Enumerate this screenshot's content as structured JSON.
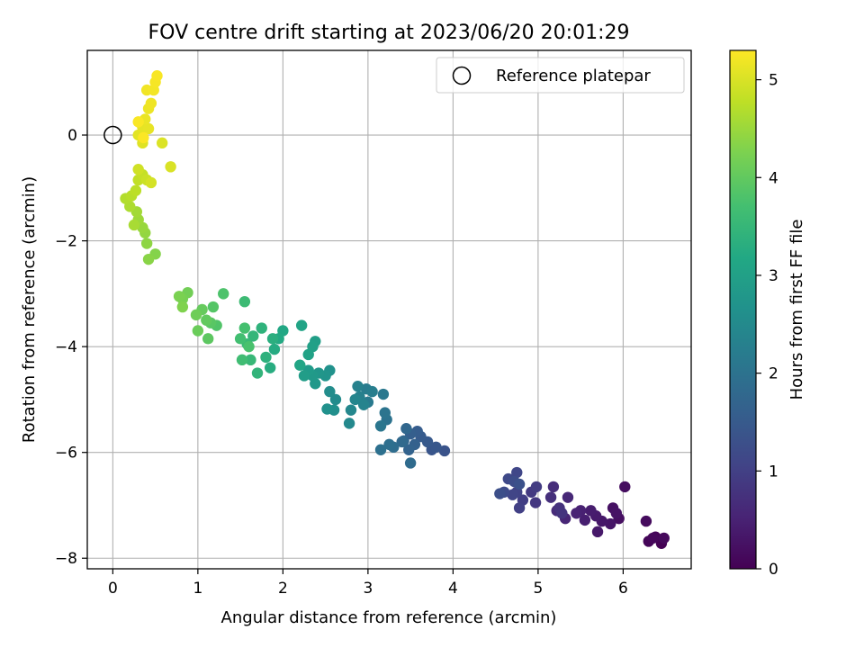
{
  "chart_data": {
    "type": "scatter",
    "title": "FOV centre drift starting at 2023/06/20 20:01:29",
    "xlabel": "Angular distance from reference (arcmin)",
    "ylabel": "Rotation from reference (arcmin)",
    "xlim": [
      -0.3,
      6.8
    ],
    "ylim": [
      -8.2,
      1.6
    ],
    "xticks": [
      0,
      1,
      2,
      3,
      4,
      5,
      6
    ],
    "yticks": [
      -8,
      -6,
      -4,
      -2,
      0
    ],
    "xtick_labels": [
      "0",
      "1",
      "2",
      "3",
      "4",
      "5",
      "6"
    ],
    "ytick_labels": [
      "−8",
      "−6",
      "−4",
      "−2",
      "0"
    ],
    "grid": true,
    "legend": {
      "placement": "top-right",
      "entries": [
        "Reference platepar"
      ]
    },
    "reference_point": {
      "x": 0,
      "y": 0
    },
    "colorbar": {
      "label": "Hours from first FF file",
      "range": [
        0,
        5.3
      ],
      "ticks": [
        0,
        1,
        2,
        3,
        4,
        5
      ],
      "tick_labels": [
        "0",
        "1",
        "2",
        "3",
        "4",
        "5"
      ],
      "colormap": "viridis"
    },
    "points": [
      [
        6.45,
        -7.72,
        0.0
      ],
      [
        6.38,
        -7.6,
        0.03
      ],
      [
        6.3,
        -7.68,
        0.06
      ],
      [
        6.35,
        -7.62,
        0.09
      ],
      [
        6.48,
        -7.62,
        0.12
      ],
      [
        6.27,
        -7.3,
        0.15
      ],
      [
        6.02,
        -6.65,
        0.18
      ],
      [
        5.95,
        -7.25,
        0.21
      ],
      [
        5.88,
        -7.05,
        0.24
      ],
      [
        5.92,
        -7.15,
        0.27
      ],
      [
        5.85,
        -7.35,
        0.3
      ],
      [
        5.75,
        -7.3,
        0.33
      ],
      [
        5.7,
        -7.5,
        0.36
      ],
      [
        5.68,
        -7.2,
        0.39
      ],
      [
        5.62,
        -7.1,
        0.42
      ],
      [
        5.55,
        -7.28,
        0.45
      ],
      [
        5.5,
        -7.1,
        0.48
      ],
      [
        5.45,
        -7.15,
        0.52
      ],
      [
        5.32,
        -7.25,
        0.56
      ],
      [
        5.35,
        -6.85,
        0.6
      ],
      [
        5.22,
        -7.1,
        0.64
      ],
      [
        5.18,
        -6.65,
        0.68
      ],
      [
        5.15,
        -6.85,
        0.72
      ],
      [
        5.25,
        -7.05,
        0.76
      ],
      [
        5.28,
        -7.15,
        0.8
      ],
      [
        4.97,
        -6.95,
        0.84
      ],
      [
        4.92,
        -6.75,
        0.88
      ],
      [
        4.98,
        -6.65,
        0.92
      ],
      [
        4.82,
        -6.9,
        0.96
      ],
      [
        4.78,
        -7.05,
        1.0
      ],
      [
        4.75,
        -6.75,
        1.04
      ],
      [
        4.7,
        -6.8,
        1.08
      ],
      [
        4.75,
        -6.38,
        1.12
      ],
      [
        4.65,
        -6.5,
        1.16
      ],
      [
        4.6,
        -6.75,
        1.2
      ],
      [
        4.72,
        -6.55,
        1.24
      ],
      [
        4.55,
        -6.78,
        1.28
      ],
      [
        4.78,
        -6.6,
        1.32
      ],
      [
        3.9,
        -5.97,
        1.36
      ],
      [
        3.75,
        -5.95,
        1.4
      ],
      [
        3.8,
        -5.9,
        1.44
      ],
      [
        3.7,
        -5.8,
        1.48
      ],
      [
        3.62,
        -5.7,
        1.52
      ],
      [
        3.58,
        -5.6,
        1.56
      ],
      [
        3.5,
        -5.65,
        1.6
      ],
      [
        3.55,
        -5.85,
        1.64
      ],
      [
        3.48,
        -5.95,
        1.68
      ],
      [
        3.42,
        -5.78,
        1.72
      ],
      [
        3.45,
        -5.55,
        1.76
      ],
      [
        3.4,
        -5.8,
        1.8
      ],
      [
        3.5,
        -6.2,
        1.84
      ],
      [
        3.3,
        -5.9,
        1.88
      ],
      [
        3.25,
        -5.85,
        1.92
      ],
      [
        3.15,
        -5.95,
        1.96
      ],
      [
        3.22,
        -5.38,
        2.0
      ],
      [
        3.2,
        -5.25,
        2.04
      ],
      [
        3.15,
        -5.5,
        2.08
      ],
      [
        3.18,
        -4.9,
        2.12
      ],
      [
        3.0,
        -5.05,
        2.16
      ],
      [
        2.98,
        -4.8,
        2.2
      ],
      [
        3.05,
        -4.85,
        2.24
      ],
      [
        2.9,
        -4.95,
        2.28
      ],
      [
        2.88,
        -4.75,
        2.32
      ],
      [
        2.95,
        -5.1,
        2.36
      ],
      [
        2.85,
        -5.0,
        2.4
      ],
      [
        2.8,
        -5.2,
        2.44
      ],
      [
        2.78,
        -5.45,
        2.48
      ],
      [
        2.62,
        -5.0,
        2.52
      ],
      [
        2.55,
        -4.85,
        2.56
      ],
      [
        2.6,
        -5.2,
        2.6
      ],
      [
        2.52,
        -5.18,
        2.64
      ],
      [
        2.55,
        -4.45,
        2.68
      ],
      [
        2.5,
        -4.55,
        2.72
      ],
      [
        2.42,
        -4.5,
        2.76
      ],
      [
        2.38,
        -4.7,
        2.8
      ],
      [
        2.35,
        -4.55,
        2.84
      ],
      [
        2.3,
        -4.45,
        2.88
      ],
      [
        2.25,
        -4.55,
        2.92
      ],
      [
        2.38,
        -3.9,
        2.96
      ],
      [
        2.35,
        -4.0,
        3.0
      ],
      [
        2.3,
        -4.15,
        3.04
      ],
      [
        2.22,
        -3.6,
        3.08
      ],
      [
        2.2,
        -4.35,
        3.12
      ],
      [
        2.0,
        -3.7,
        3.16
      ],
      [
        1.95,
        -3.85,
        3.2
      ],
      [
        1.9,
        -4.05,
        3.24
      ],
      [
        1.85,
        -4.4,
        3.28
      ],
      [
        1.88,
        -3.85,
        3.32
      ],
      [
        1.8,
        -4.2,
        3.36
      ],
      [
        1.75,
        -3.65,
        3.4
      ],
      [
        1.7,
        -4.5,
        3.44
      ],
      [
        1.65,
        -3.8,
        3.48
      ],
      [
        1.62,
        -4.25,
        3.52
      ],
      [
        1.58,
        -3.95,
        3.56
      ],
      [
        1.55,
        -3.15,
        3.6
      ],
      [
        1.52,
        -4.25,
        3.64
      ],
      [
        1.5,
        -3.85,
        3.68
      ],
      [
        1.55,
        -3.65,
        3.72
      ],
      [
        1.6,
        -4.0,
        3.76
      ],
      [
        1.3,
        -3.0,
        3.8
      ],
      [
        1.22,
        -3.6,
        3.84
      ],
      [
        1.18,
        -3.25,
        3.88
      ],
      [
        1.15,
        -3.55,
        3.92
      ],
      [
        1.12,
        -3.85,
        3.96
      ],
      [
        1.1,
        -3.5,
        4.0
      ],
      [
        1.05,
        -3.3,
        4.04
      ],
      [
        1.0,
        -3.7,
        4.08
      ],
      [
        0.98,
        -3.4,
        4.12
      ],
      [
        0.88,
        -2.98,
        4.16
      ],
      [
        0.82,
        -3.1,
        4.2
      ],
      [
        0.78,
        -3.05,
        4.24
      ],
      [
        0.82,
        -3.25,
        4.28
      ],
      [
        0.5,
        -2.25,
        4.32
      ],
      [
        0.42,
        -2.35,
        4.36
      ],
      [
        0.4,
        -2.05,
        4.4
      ],
      [
        0.38,
        -1.85,
        4.44
      ],
      [
        0.35,
        -1.75,
        4.48
      ],
      [
        0.3,
        -1.6,
        4.52
      ],
      [
        0.28,
        -1.45,
        4.56
      ],
      [
        0.25,
        -1.7,
        4.6
      ],
      [
        0.2,
        -1.35,
        4.64
      ],
      [
        0.15,
        -1.2,
        4.68
      ],
      [
        0.22,
        -1.15,
        4.72
      ],
      [
        0.27,
        -1.05,
        4.76
      ],
      [
        0.3,
        -0.85,
        4.8
      ],
      [
        0.35,
        -0.75,
        4.84
      ],
      [
        0.4,
        -0.85,
        4.88
      ],
      [
        0.3,
        -0.65,
        4.92
      ],
      [
        0.45,
        -0.9,
        4.96
      ],
      [
        0.68,
        -0.6,
        5.0
      ],
      [
        0.58,
        -0.15,
        5.02
      ],
      [
        0.35,
        -0.15,
        5.05
      ],
      [
        0.3,
        0.0,
        5.08
      ],
      [
        0.35,
        0.15,
        5.1
      ],
      [
        0.42,
        0.12,
        5.12
      ],
      [
        0.38,
        0.3,
        5.14
      ],
      [
        0.42,
        0.5,
        5.16
      ],
      [
        0.45,
        0.6,
        5.18
      ],
      [
        0.4,
        0.85,
        5.2
      ],
      [
        0.48,
        0.85,
        5.22
      ],
      [
        0.5,
        1.0,
        5.24
      ],
      [
        0.52,
        1.12,
        5.26
      ],
      [
        0.3,
        0.25,
        5.27
      ],
      [
        0.36,
        -0.05,
        5.28
      ]
    ]
  }
}
